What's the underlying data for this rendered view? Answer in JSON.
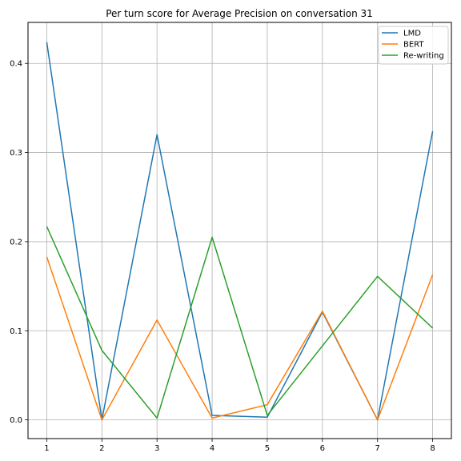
{
  "chart_data": {
    "type": "line",
    "title": "Per turn score for Average Precision on conversation 31",
    "xlabel": "",
    "ylabel": "",
    "x": [
      1,
      2,
      3,
      4,
      5,
      6,
      7,
      8
    ],
    "xlim": [
      0.66,
      8.34
    ],
    "ylim": [
      -0.021,
      0.446
    ],
    "xticks": [
      1,
      2,
      3,
      4,
      5,
      6,
      7,
      8
    ],
    "yticks": [
      0.0,
      0.1,
      0.2,
      0.3,
      0.4
    ],
    "ytick_labels": [
      "0.0",
      "0.1",
      "0.2",
      "0.3",
      "0.4"
    ],
    "grid": true,
    "legend_position": "top-right",
    "series": [
      {
        "name": "LMD",
        "color": "#1f77b4",
        "values": [
          0.424,
          0.0,
          0.32,
          0.005,
          0.003,
          0.121,
          0.0,
          0.324
        ]
      },
      {
        "name": "BERT",
        "color": "#ff7f0e",
        "values": [
          0.183,
          0.0,
          0.112,
          0.002,
          0.017,
          0.122,
          0.0,
          0.163
        ]
      },
      {
        "name": "Re-writing",
        "color": "#2ca02c",
        "values": [
          0.217,
          0.078,
          0.002,
          0.205,
          0.005,
          0.083,
          0.161,
          0.103
        ]
      }
    ]
  }
}
